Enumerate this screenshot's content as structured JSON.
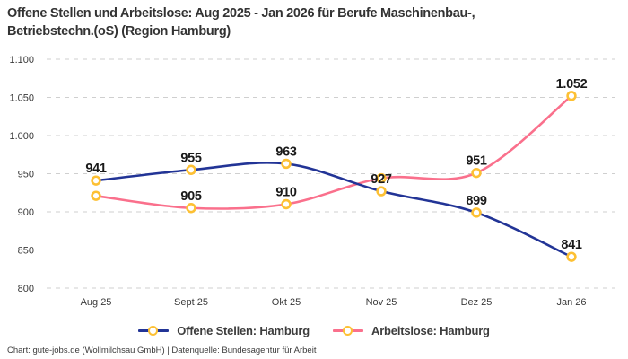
{
  "header": {
    "title_line1": "Offene Stellen und Arbeitslose: Aug 2025 - Jan 2026 für Berufe Maschinenbau-,",
    "title_line2": "Betriebstechn.(oS) (Region Hamburg)"
  },
  "chart_data": {
    "type": "line",
    "categories": [
      "Aug 25",
      "Sept 25",
      "Okt 25",
      "Nov 25",
      "Dez 25",
      "Jan 26"
    ],
    "y_ticks": [
      {
        "label": "1.100",
        "value": 1100
      },
      {
        "label": "1.050",
        "value": 1050
      },
      {
        "label": "1.000",
        "value": 1000
      },
      {
        "label": "950",
        "value": 950
      },
      {
        "label": "900",
        "value": 900
      },
      {
        "label": "850",
        "value": 850
      },
      {
        "label": "800",
        "value": 800
      }
    ],
    "ylim": [
      800,
      1100
    ],
    "grid": "horizontal-dashed",
    "legend_position": "bottom",
    "marker": {
      "shape": "circle",
      "color": "#fdc033",
      "fill": "#ffffff"
    },
    "series": [
      {
        "name": "Offene Stellen: Hamburg",
        "color": "#223496",
        "values": [
          941,
          955,
          963,
          927,
          899,
          841
        ],
        "point_labels": [
          "941",
          "955",
          "963",
          "927",
          "899",
          "841"
        ]
      },
      {
        "name": "Arbeitslose: Hamburg",
        "color": "#fa708c",
        "values": [
          921,
          905,
          910,
          944,
          951,
          1052
        ],
        "point_labels": [
          "",
          "905",
          "910",
          "",
          "951",
          "1.052"
        ]
      }
    ]
  },
  "footer": {
    "text": "Chart: gute-jobs.de (Wollmilchsau GmbH) | Datenquelle: Bundesagentur für Arbeit"
  }
}
